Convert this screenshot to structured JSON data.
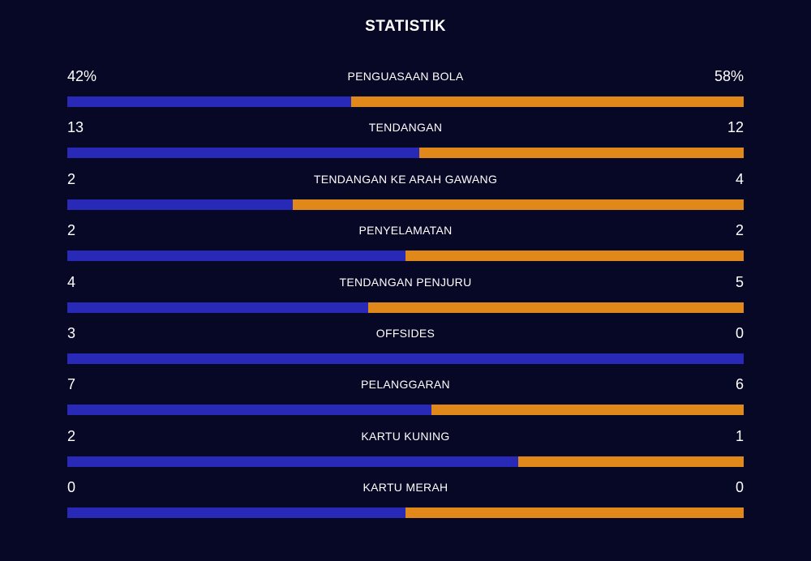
{
  "title": "STATISTIK",
  "colors": {
    "background": "#070726",
    "home": "#2929b8",
    "away": "#e0881a"
  },
  "stats": [
    {
      "label": "PENGUASAAN BOLA",
      "left": "42%",
      "right": "58%",
      "share": 0.42
    },
    {
      "label": "TENDANGAN",
      "left": "13",
      "right": "12",
      "share": 0.52
    },
    {
      "label": "TENDANGAN KE ARAH GAWANG",
      "left": "2",
      "right": "4",
      "share": 0.3333
    },
    {
      "label": "PENYELAMATAN",
      "left": "2",
      "right": "2",
      "share": 0.5
    },
    {
      "label": "TENDANGAN PENJURU",
      "left": "4",
      "right": "5",
      "share": 0.4444
    },
    {
      "label": "OFFSIDES",
      "left": "3",
      "right": "0",
      "share": 1.0
    },
    {
      "label": "PELANGGARAN",
      "left": "7",
      "right": "6",
      "share": 0.5385
    },
    {
      "label": "KARTU KUNING",
      "left": "2",
      "right": "1",
      "share": 0.6667
    },
    {
      "label": "KARTU MERAH",
      "left": "0",
      "right": "0",
      "share": 0.5
    }
  ]
}
